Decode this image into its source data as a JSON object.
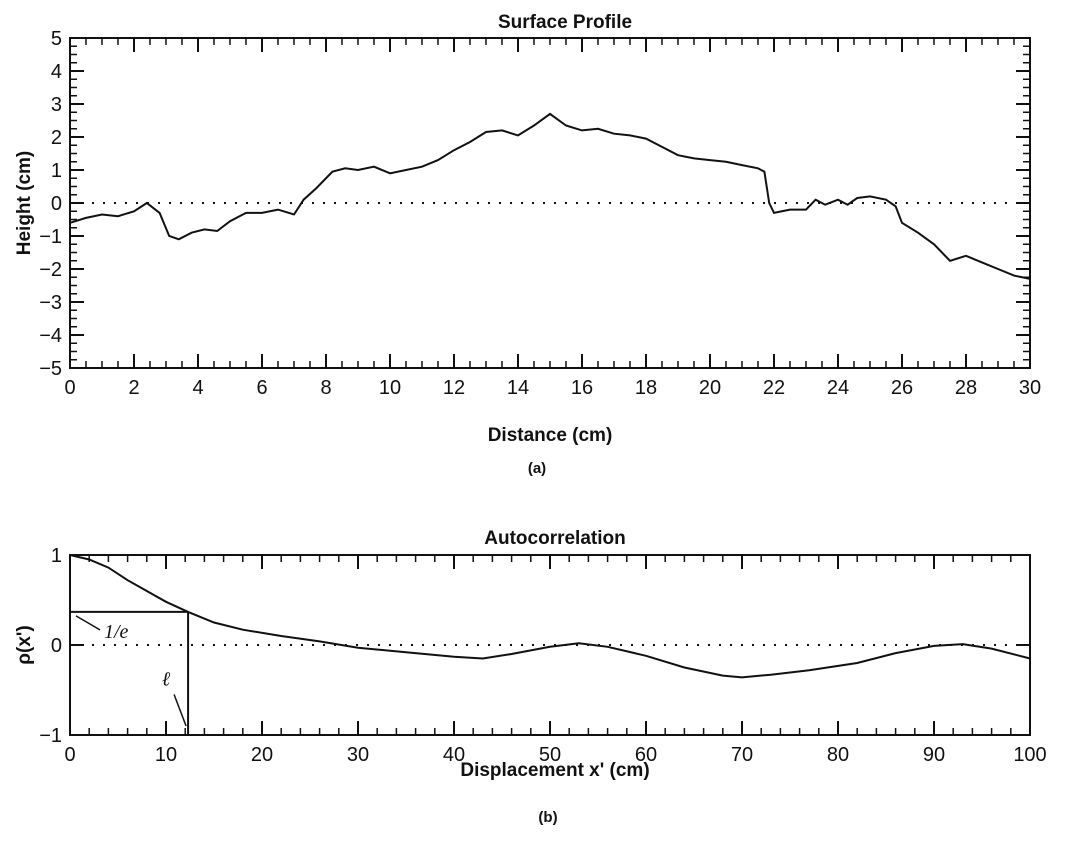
{
  "chart_data": [
    {
      "type": "line",
      "title": "Surface Profile",
      "xlabel": "Distance (cm)",
      "ylabel": "Height (cm)",
      "panel_label": "(a)",
      "xlim": [
        0,
        30
      ],
      "ylim": [
        -5,
        5
      ],
      "x_ticks": [
        0,
        2,
        4,
        6,
        8,
        10,
        12,
        14,
        16,
        18,
        20,
        22,
        24,
        26,
        28,
        30
      ],
      "y_ticks": [
        -5,
        -4,
        -3,
        -2,
        -1,
        0,
        1,
        2,
        3,
        4,
        5
      ],
      "x_tick_labels": [
        "0",
        "2",
        "4",
        "6",
        "8",
        "10",
        "12",
        "14",
        "16",
        "18",
        "20",
        "22",
        "24",
        "26",
        "28",
        "30"
      ],
      "y_tick_labels": [
        "-5",
        "-4",
        "-3",
        "-2",
        "-1",
        "0",
        "1",
        "2",
        "3",
        "4",
        "5"
      ],
      "reference_line": {
        "y": 0,
        "style": "dotted"
      },
      "grid": false,
      "series": [
        {
          "x": [
            0,
            0.5,
            1,
            1.5,
            2,
            2.4,
            2.8,
            3.1,
            3.4,
            3.8,
            4.2,
            4.6,
            5,
            5.5,
            6,
            6.5,
            7,
            7.3,
            7.7,
            8.2,
            8.6,
            9,
            9.5,
            10,
            10.5,
            11,
            11.5,
            12,
            12.5,
            13,
            13.5,
            14,
            14.5,
            15,
            15.5,
            16,
            16.5,
            17,
            17.5,
            18,
            18.5,
            19,
            19.5,
            20,
            20.5,
            21,
            21.5,
            21.7,
            21.85,
            22,
            22.5,
            23,
            23.3,
            23.6,
            24,
            24.3,
            24.6,
            25,
            25.5,
            25.8,
            26,
            26.5,
            27,
            27.5,
            28,
            28.5,
            29,
            29.5,
            30
          ],
          "y": [
            -0.6,
            -0.45,
            -0.35,
            -0.4,
            -0.25,
            0,
            -0.3,
            -1.0,
            -1.1,
            -0.9,
            -0.8,
            -0.85,
            -0.55,
            -0.3,
            -0.3,
            -0.2,
            -0.35,
            0.1,
            0.45,
            0.95,
            1.05,
            1.0,
            1.1,
            0.9,
            1.0,
            1.1,
            1.3,
            1.6,
            1.85,
            2.15,
            2.2,
            2.05,
            2.35,
            2.7,
            2.35,
            2.2,
            2.25,
            2.1,
            2.05,
            1.95,
            1.7,
            1.45,
            1.35,
            1.3,
            1.25,
            1.15,
            1.05,
            0.95,
            0.0,
            -0.3,
            -0.2,
            -0.2,
            0.1,
            -0.05,
            0.1,
            -0.05,
            0.15,
            0.2,
            0.1,
            -0.1,
            -0.6,
            -0.9,
            -1.25,
            -1.75,
            -1.6,
            -1.8,
            -2.0,
            -2.2,
            -2.3
          ]
        }
      ]
    },
    {
      "type": "line",
      "title": "Autocorrelation",
      "xlabel": "Displacement x' (cm)",
      "ylabel": "ρ(x')",
      "panel_label": "(b)",
      "xlim": [
        0,
        100
      ],
      "ylim": [
        -1,
        1
      ],
      "x_ticks": [
        0,
        10,
        20,
        30,
        40,
        50,
        60,
        70,
        80,
        90,
        100
      ],
      "y_ticks": [
        -1,
        0,
        1
      ],
      "x_tick_labels": [
        "0",
        "10",
        "20",
        "30",
        "40",
        "50",
        "60",
        "70",
        "80",
        "90",
        "100"
      ],
      "y_tick_labels": [
        "-1",
        "0",
        "1"
      ],
      "reference_line": {
        "y": 0,
        "style": "dotted"
      },
      "grid": false,
      "annotations": [
        {
          "text": "1/e",
          "x": 0,
          "y": 0.368
        },
        {
          "text": "ℓ",
          "x": 12.3,
          "y": -1
        }
      ],
      "correlation_length": 12.3,
      "series": [
        {
          "x": [
            0,
            2,
            4,
            6,
            8,
            10,
            12.3,
            15,
            18,
            22,
            26,
            30,
            35,
            40,
            43,
            46,
            50,
            53,
            56,
            60,
            64,
            68,
            70,
            73,
            77,
            82,
            86,
            90,
            93,
            96,
            100
          ],
          "y": [
            1.0,
            0.95,
            0.86,
            0.72,
            0.6,
            0.48,
            0.368,
            0.25,
            0.17,
            0.1,
            0.04,
            -0.03,
            -0.08,
            -0.13,
            -0.15,
            -0.1,
            -0.02,
            0.02,
            -0.02,
            -0.12,
            -0.25,
            -0.34,
            -0.36,
            -0.33,
            -0.28,
            -0.2,
            -0.09,
            -0.01,
            0.01,
            -0.04,
            -0.15
          ]
        }
      ]
    }
  ]
}
